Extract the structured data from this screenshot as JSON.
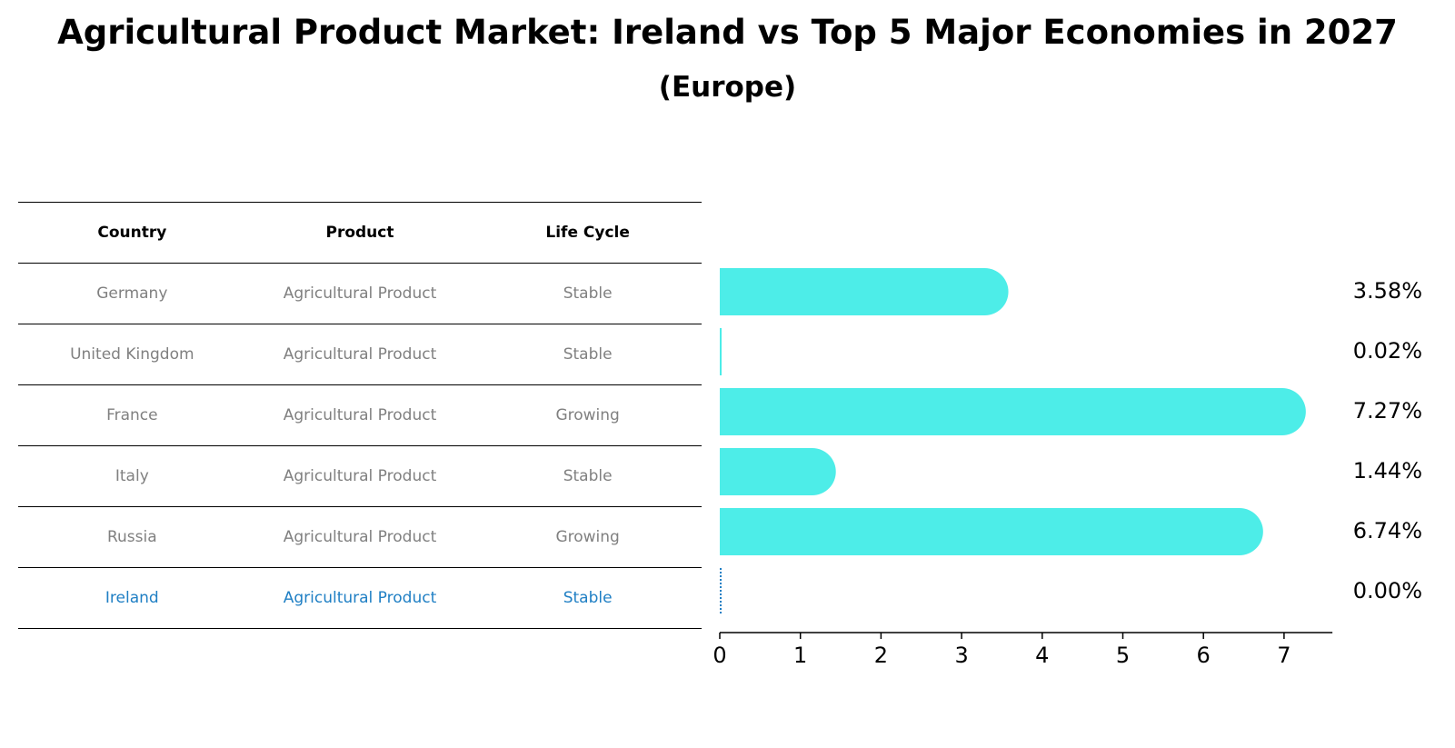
{
  "title": "Agricultural Product Market: Ireland vs Top 5 Major Economies in 2027",
  "subtitle": "(Europe)",
  "table": {
    "headers": [
      "Country",
      "Product",
      "Life Cycle"
    ],
    "rows": [
      [
        "Germany",
        "Agricultural Product",
        "Stable"
      ],
      [
        "United Kingdom",
        "Agricultural Product",
        "Stable"
      ],
      [
        "France",
        "Agricultural Product",
        "Growing"
      ],
      [
        "Italy",
        "Agricultural Product",
        "Stable"
      ],
      [
        "Russia",
        "Agricultural Product",
        "Growing"
      ],
      [
        "Ireland",
        "Agricultural Product",
        "Stable"
      ]
    ],
    "highlight_row": "Ireland"
  },
  "colors": {
    "bar": "#4dede8",
    "highlight": "#1f7fc4",
    "muted_text": "#808080"
  },
  "chart_data": {
    "type": "bar",
    "orientation": "horizontal",
    "categories": [
      "Germany",
      "United Kingdom",
      "France",
      "Italy",
      "Russia",
      "Ireland"
    ],
    "values": [
      3.58,
      0.02,
      7.27,
      1.44,
      6.74,
      0.0
    ],
    "value_labels": [
      "3.58%",
      "0.02%",
      "7.27%",
      "1.44%",
      "6.74%",
      "0.00%"
    ],
    "xticks": [
      0,
      1,
      2,
      3,
      4,
      5,
      6,
      7
    ],
    "xlim": [
      0,
      7.6
    ],
    "grid": false
  }
}
